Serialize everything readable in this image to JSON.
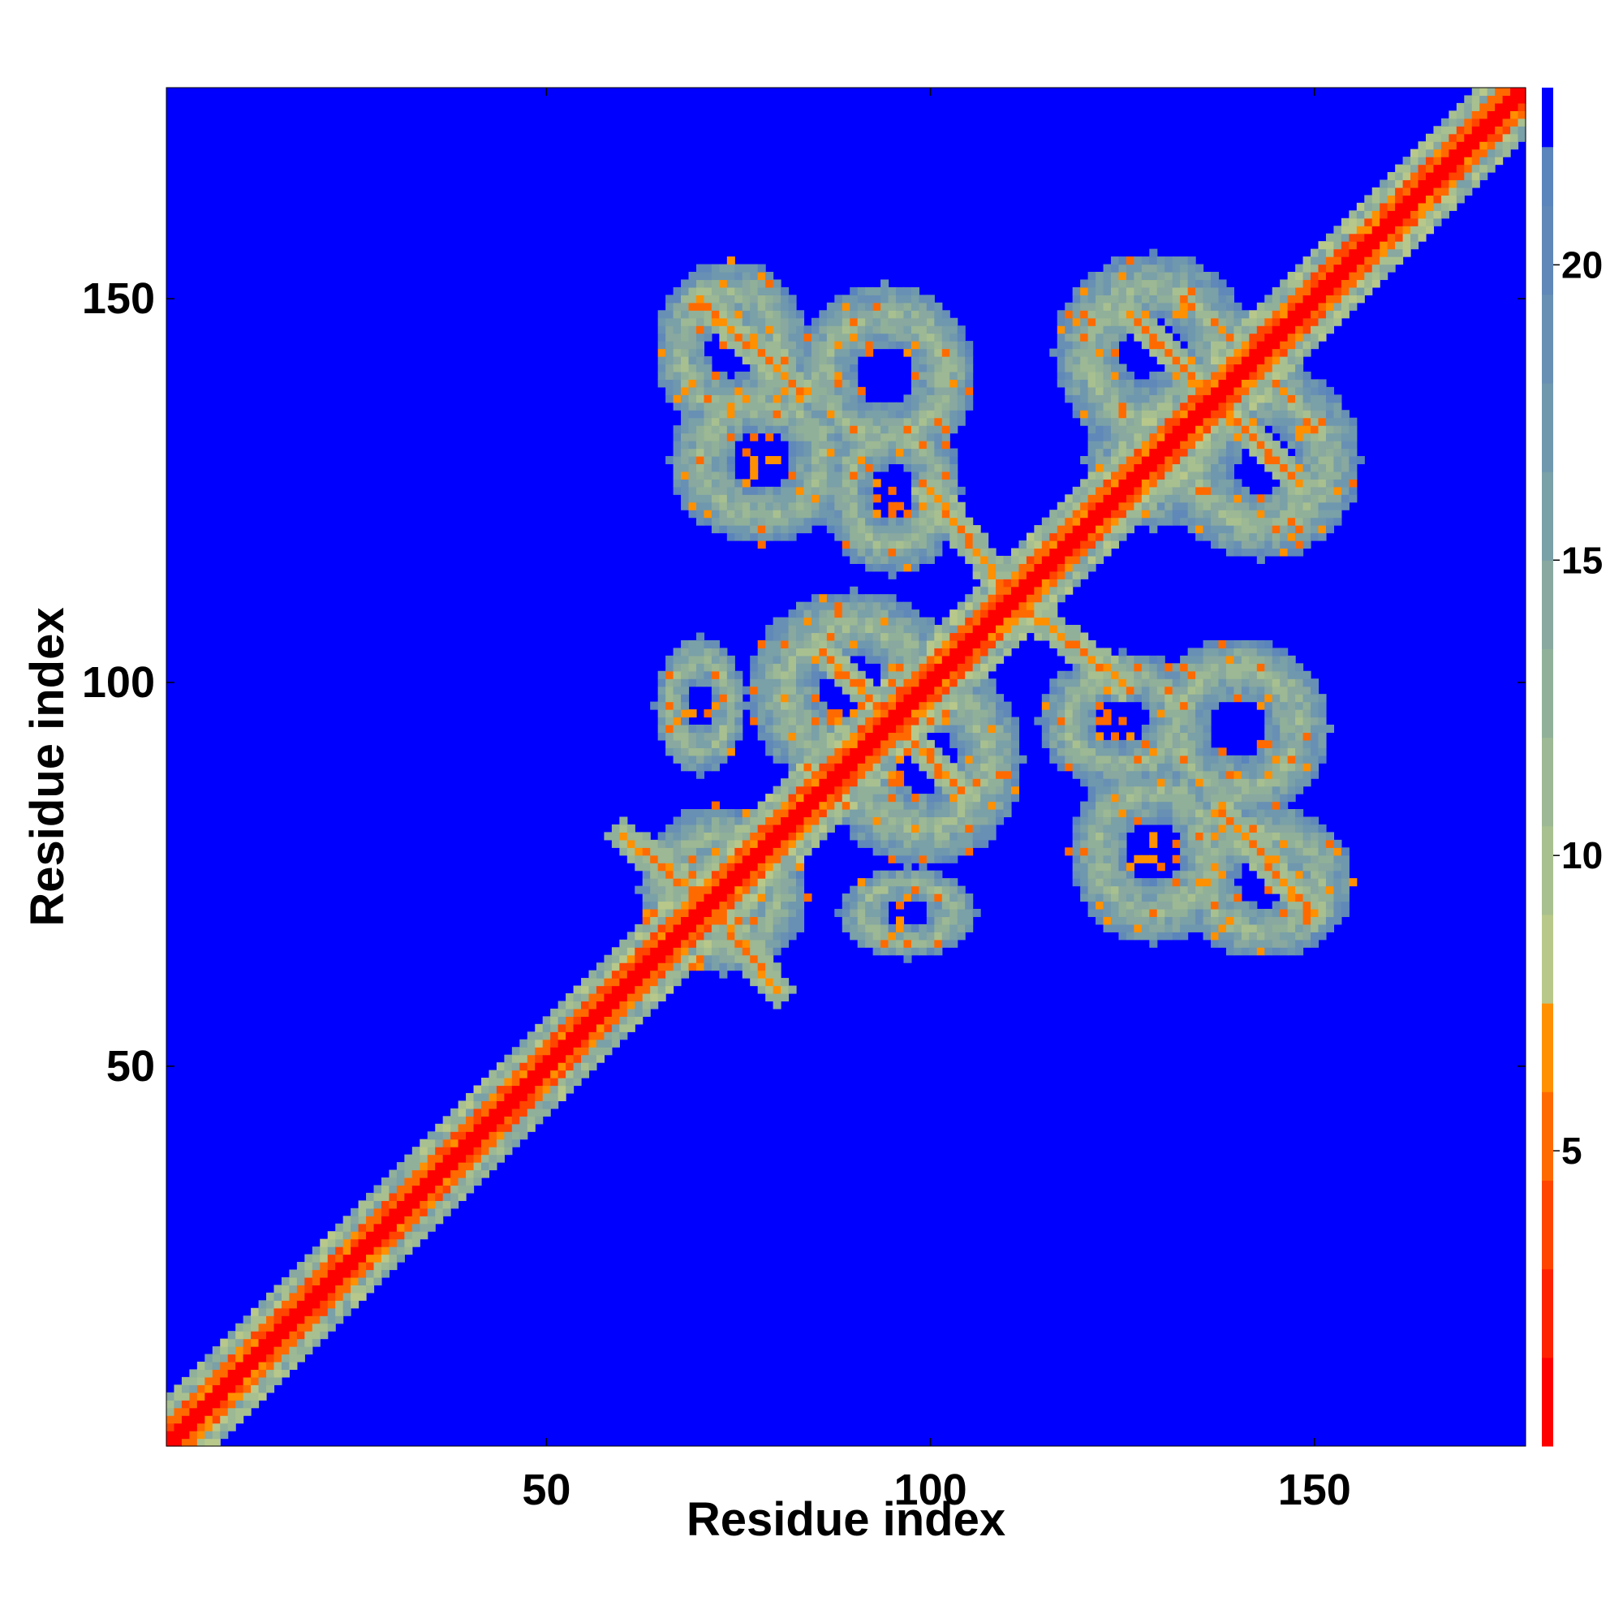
{
  "chart_data": {
    "type": "heatmap",
    "title": "",
    "xlabel": "Residue index",
    "ylabel": "Residue index",
    "xlim": [
      1,
      177
    ],
    "ylim": [
      1,
      177
    ],
    "xticks": [
      50,
      100,
      150
    ],
    "yticks": [
      50,
      100,
      150
    ],
    "x_tick_labels": [
      "50",
      "100",
      "150"
    ],
    "y_tick_labels": [
      "50",
      "100",
      "150"
    ],
    "grid": false,
    "symmetric": true,
    "colorbar": {
      "min": 0,
      "max": 23,
      "ticks": [
        5,
        10,
        15,
        20
      ],
      "tick_labels": [
        "5",
        "10",
        "15",
        "20"
      ],
      "levels": [
        {
          "upper": 1.5,
          "color": "#ff0000"
        },
        {
          "upper": 3.0,
          "color": "#ff2200"
        },
        {
          "upper": 4.5,
          "color": "#ff4500"
        },
        {
          "upper": 6.0,
          "color": "#ff6a00"
        },
        {
          "upper": 7.5,
          "color": "#ff9000"
        },
        {
          "upper": 9.0,
          "color": "#b8c88a"
        },
        {
          "upper": 10.5,
          "color": "#a8c090"
        },
        {
          "upper": 12.0,
          "color": "#9cb894"
        },
        {
          "upper": 13.5,
          "color": "#90b09a"
        },
        {
          "upper": 15.0,
          "color": "#88a8a0"
        },
        {
          "upper": 16.5,
          "color": "#7aa0a8"
        },
        {
          "upper": 18.0,
          "color": "#6f98ae"
        },
        {
          "upper": 19.5,
          "color": "#6890b4"
        },
        {
          "upper": 21.0,
          "color": "#6088b8"
        },
        {
          "upper": 22.0,
          "color": "#5a84bc"
        },
        {
          "upper": 23.0,
          "color": "#0000ff"
        }
      ]
    },
    "background_color": "#0000ff",
    "contact_regions": [
      {
        "x": [
          64,
          84
        ],
        "y": [
          132,
          155
        ],
        "note": "orange band"
      },
      {
        "x": [
          82,
          106
        ],
        "y": [
          128,
          152
        ]
      },
      {
        "x": [
          66,
          90
        ],
        "y": [
          118,
          140
        ]
      },
      {
        "x": [
          86,
          104
        ],
        "y": [
          114,
          136
        ]
      },
      {
        "x": [
          116,
          142
        ],
        "y": [
          130,
          156
        ]
      },
      {
        "x": [
          120,
          156
        ],
        "y": [
          116,
          142
        ]
      },
      {
        "x": [
          128,
          150
        ],
        "y": [
          104,
          128
        ]
      },
      {
        "x": [
          76,
          104
        ],
        "y": [
          86,
          112
        ]
      },
      {
        "x": [
          64,
          76
        ],
        "y": [
          88,
          106
        ]
      },
      {
        "x": [
          88,
          110
        ],
        "y": [
          80,
          100
        ]
      },
      {
        "x": [
          116,
          140
        ],
        "y": [
          88,
          112
        ]
      },
      {
        "x": [
          126,
          152
        ],
        "y": [
          84,
          106
        ]
      },
      {
        "x": [
          134,
          158
        ],
        "y": [
          64,
          88
        ]
      },
      {
        "x": [
          112,
          140
        ],
        "y": [
          62,
          86
        ]
      },
      {
        "x": [
          62,
          82
        ],
        "y": [
          62,
          84
        ]
      },
      {
        "x": [
          82,
          108
        ],
        "y": [
          64,
          82
        ]
      }
    ],
    "cross_diagonals": [
      {
        "from": [
          70,
          150
        ],
        "to": [
          83,
          138
        ],
        "color": "#ff9000"
      },
      {
        "from": [
          100,
          125
        ],
        "to": [
          110,
          112
        ],
        "color": "#ff9000"
      },
      {
        "from": [
          86,
          104
        ],
        "to": [
          96,
          94
        ],
        "color": "#ff9000"
      },
      {
        "from": [
          112,
          108
        ],
        "to": [
          124,
          96
        ],
        "color": "#ff9000"
      },
      {
        "from": [
          60,
          80
        ],
        "to": [
          80,
          64
        ],
        "color": "#ff9000"
      },
      {
        "from": [
          140,
          82
        ],
        "to": [
          150,
          72
        ],
        "color": "#ff9000"
      },
      {
        "from": [
          126,
          148
        ],
        "to": [
          140,
          134
        ],
        "color": "#ff9000"
      },
      {
        "from": [
          138,
          136
        ],
        "to": [
          152,
          124
        ],
        "color": "#ff9000"
      }
    ]
  }
}
